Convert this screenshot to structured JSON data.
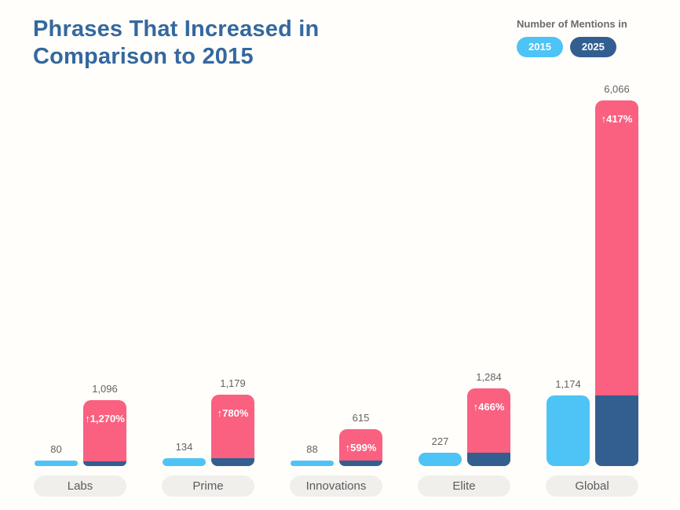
{
  "header": {
    "title_line1": "Phrases That Increased in",
    "title_line2": "Comparison to 2015"
  },
  "legend": {
    "title": "Number of Mentions in",
    "items": [
      {
        "label": "2015",
        "color": "#4dc3f6"
      },
      {
        "label": "2025",
        "color": "#335e90"
      }
    ]
  },
  "chart_data": {
    "type": "bar",
    "title": "Phrases That Increased in Comparison to 2015",
    "categories": [
      "Labs",
      "Prime",
      "Innovations",
      "Elite",
      "Global"
    ],
    "series": [
      {
        "name": "2015",
        "values": [
          80,
          134,
          88,
          227,
          1174
        ]
      },
      {
        "name": "2025",
        "values": [
          1096,
          1179,
          615,
          1284,
          6066
        ]
      }
    ],
    "value_labels_2015": [
      "80",
      "134",
      "88",
      "227",
      "1,174"
    ],
    "value_labels_2025": [
      "1,096",
      "1,179",
      "615",
      "1,284",
      "6,066"
    ],
    "increase_labels": [
      "↑1,270%",
      "↑780%",
      "↑599%",
      "↑466%",
      "↑417%"
    ],
    "legend_position": "top-right",
    "grid": false,
    "ylim": [
      0,
      6066
    ],
    "colors": {
      "light_blue_2015": "#4dc3f6",
      "dark_blue_2025_base": "#335e90",
      "pink_increase": "#fa6080",
      "title_blue": "#34689f",
      "label_gray": "#636363",
      "pill_gray": "#f0efec"
    }
  }
}
